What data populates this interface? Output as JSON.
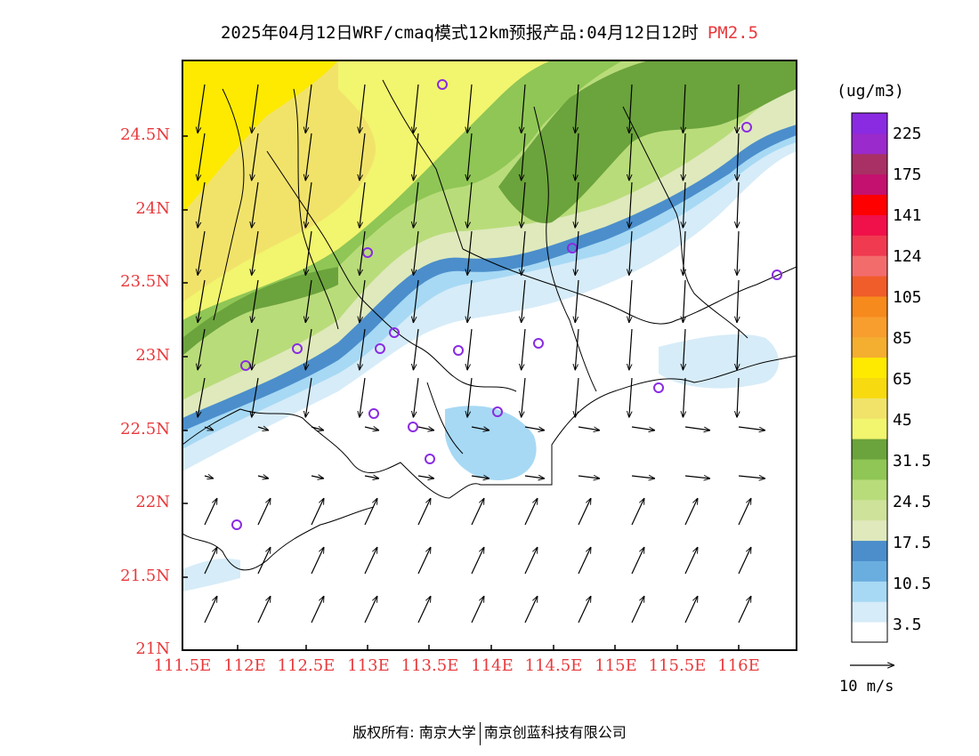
{
  "title": {
    "main": "2025年04月12日WRF/cmaq模式12km预报产品:04月12日12时",
    "species": "PM2.5"
  },
  "colors": {
    "axis_label": "#e8393c",
    "coast": "#000000",
    "station": "#8a2be2"
  },
  "map_data": {
    "lat_ticks": [
      "21N",
      "21.5N",
      "22N",
      "22.5N",
      "23N",
      "23.5N",
      "24N",
      "24.5N"
    ],
    "lon_ticks": [
      "111.5E",
      "112E",
      "112.5E",
      "113E",
      "113.5E",
      "114E",
      "114.5E",
      "115E",
      "115.5E",
      "116E"
    ]
  },
  "colorbar": {
    "unit": "(ug/m3)",
    "swatches": [
      "#ffffff",
      "#d6ecf8",
      "#a7d9f4",
      "#6aaee0",
      "#4b8ecb",
      "#dfe9bc",
      "#cfe29a",
      "#b9dc7a",
      "#8fc655",
      "#6ba33c",
      "#f2f56e",
      "#f1e36a",
      "#f8da10",
      "#fdea00",
      "#f4ae30",
      "#f89e2e",
      "#f68a1c",
      "#f05c2a",
      "#f36c6c",
      "#f03a50",
      "#f0104a",
      "#ff0000",
      "#c4106e",
      "#a83064",
      "#9a2acb",
      "#8a2be2"
    ],
    "labels": [
      "3.5",
      "10.5",
      "17.5",
      "24.5",
      "31.5",
      "45",
      "65",
      "85",
      "105",
      "124",
      "141",
      "175",
      "225"
    ]
  },
  "wind_reference": "10 m/s",
  "footer": {
    "left": "版权所有: 南京大学",
    "right": "南京创蓝科技有限公司"
  }
}
